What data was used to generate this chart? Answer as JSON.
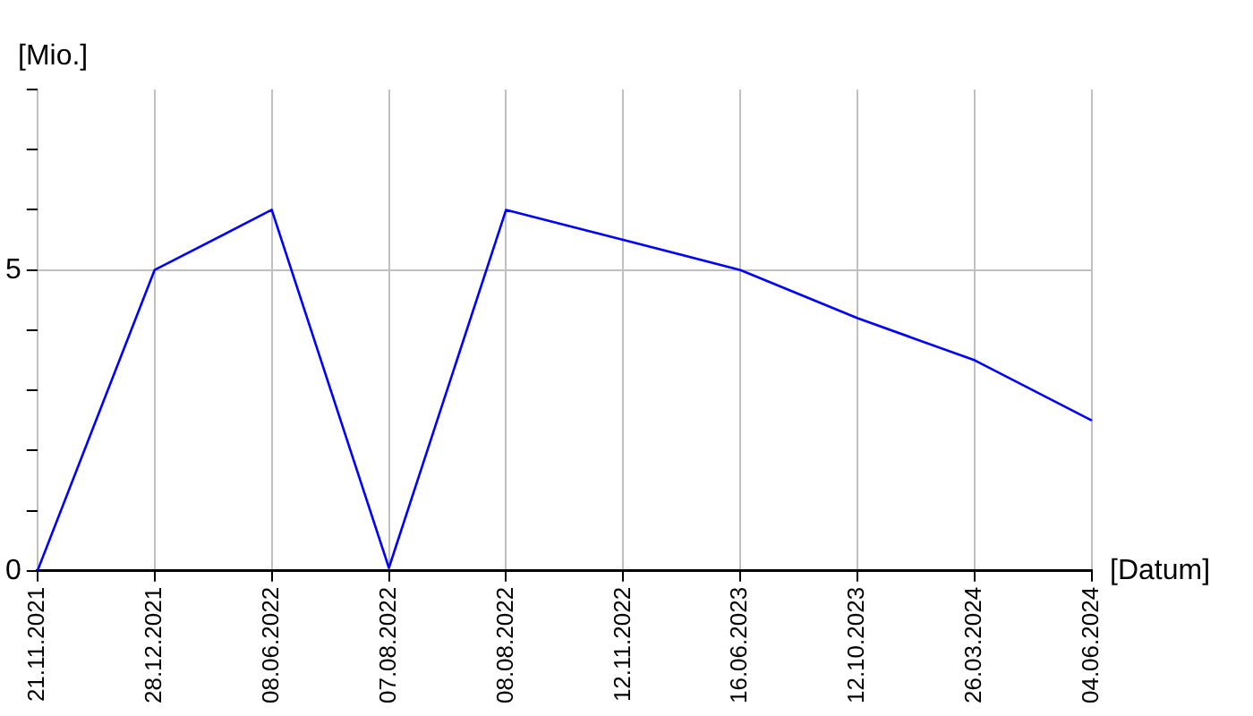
{
  "chart_data": {
    "type": "line",
    "xlabel": "[Datum]",
    "ylabel": "[Mio.]",
    "categories": [
      "21.11.2021",
      "28.12.2021",
      "08.06.2022",
      "07.08.2022",
      "08.08.2022",
      "12.11.2022",
      "16.06.2023",
      "12.10.2023",
      "26.03.2024",
      "04.06.2024"
    ],
    "series": [
      {
        "color": "#0000ff",
        "values": [
          0,
          5,
          6,
          0.05,
          6,
          5.5,
          5,
          4.2,
          3.5,
          2.5
        ]
      }
    ],
    "ylim": [
      0,
      8
    ],
    "yticks": [
      0,
      {
        "value": 1,
        "label": null
      },
      {
        "value": 2,
        "label": null
      },
      {
        "value": 3,
        "label": null
      },
      {
        "value": 4,
        "label": null
      },
      5,
      {
        "value": 6,
        "label": null
      },
      {
        "value": 7,
        "label": null
      },
      {
        "value": 8,
        "label": null
      }
    ],
    "grid": true,
    "legend": false,
    "marker": "none",
    "line_style": "solid"
  }
}
